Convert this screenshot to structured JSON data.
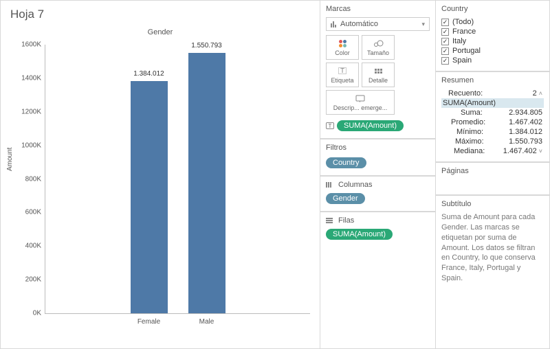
{
  "sheet": {
    "title": "Hoja 7"
  },
  "chart": {
    "type": "bar",
    "title": "Gender",
    "y_label": "Amount",
    "ymax": 1600000,
    "yticks": [
      {
        "v": 0,
        "label": "0K"
      },
      {
        "v": 200000,
        "label": "200K"
      },
      {
        "v": 400000,
        "label": "400K"
      },
      {
        "v": 600000,
        "label": "600K"
      },
      {
        "v": 800000,
        "label": "800K"
      },
      {
        "v": 1000000,
        "label": "1000K"
      },
      {
        "v": 1200000,
        "label": "1200K"
      },
      {
        "v": 1400000,
        "label": "1400K"
      },
      {
        "v": 1600000,
        "label": "1600K"
      }
    ],
    "categories": [
      {
        "name": "Female",
        "value": 1384012,
        "label": "1.384.012"
      },
      {
        "name": "Male",
        "value": 1550793,
        "label": "1.550.793"
      }
    ],
    "bar_color": "#4e79a7",
    "background_color": "#ffffff"
  },
  "marks": {
    "title": "Marcas",
    "dropdown": "Automático",
    "buttons": {
      "color": "Color",
      "size": "Tamaño",
      "label": "Etiqueta",
      "detail": "Detalle",
      "tooltip": "Descrip... emerge..."
    },
    "pill": "SUMA(Amount)"
  },
  "filters": {
    "title": "Filtros",
    "pill": "Country"
  },
  "columns": {
    "title": "Columnas",
    "pill": "Gender"
  },
  "rows": {
    "title": "Filas",
    "pill": "SUMA(Amount)"
  },
  "country_filter": {
    "title": "Country",
    "items": [
      {
        "label": "(Todo)",
        "checked": true
      },
      {
        "label": "France",
        "checked": true
      },
      {
        "label": "Italy",
        "checked": true
      },
      {
        "label": "Portugal",
        "checked": true
      },
      {
        "label": "Spain",
        "checked": true
      }
    ]
  },
  "summary": {
    "title": "Resumen",
    "rows": {
      "count_label": "Recuento:",
      "count_value": "2",
      "field": "SUMA(Amount)",
      "sum_label": "Suma:",
      "sum_value": "2.934.805",
      "avg_label": "Promedio:",
      "avg_value": "1.467.402",
      "min_label": "Mínimo:",
      "min_value": "1.384.012",
      "max_label": "Máximo:",
      "max_value": "1.550.793",
      "med_label": "Mediana:",
      "med_value": "1.467.402"
    }
  },
  "pages": {
    "title": "Páginas"
  },
  "caption": {
    "title": "Subtítulo",
    "text": "Suma de Amount para cada Gender.  Las marcas se etiquetan por suma de Amount. Los datos se filtran en Country, lo que conserva France, Italy, Portugal y Spain."
  }
}
